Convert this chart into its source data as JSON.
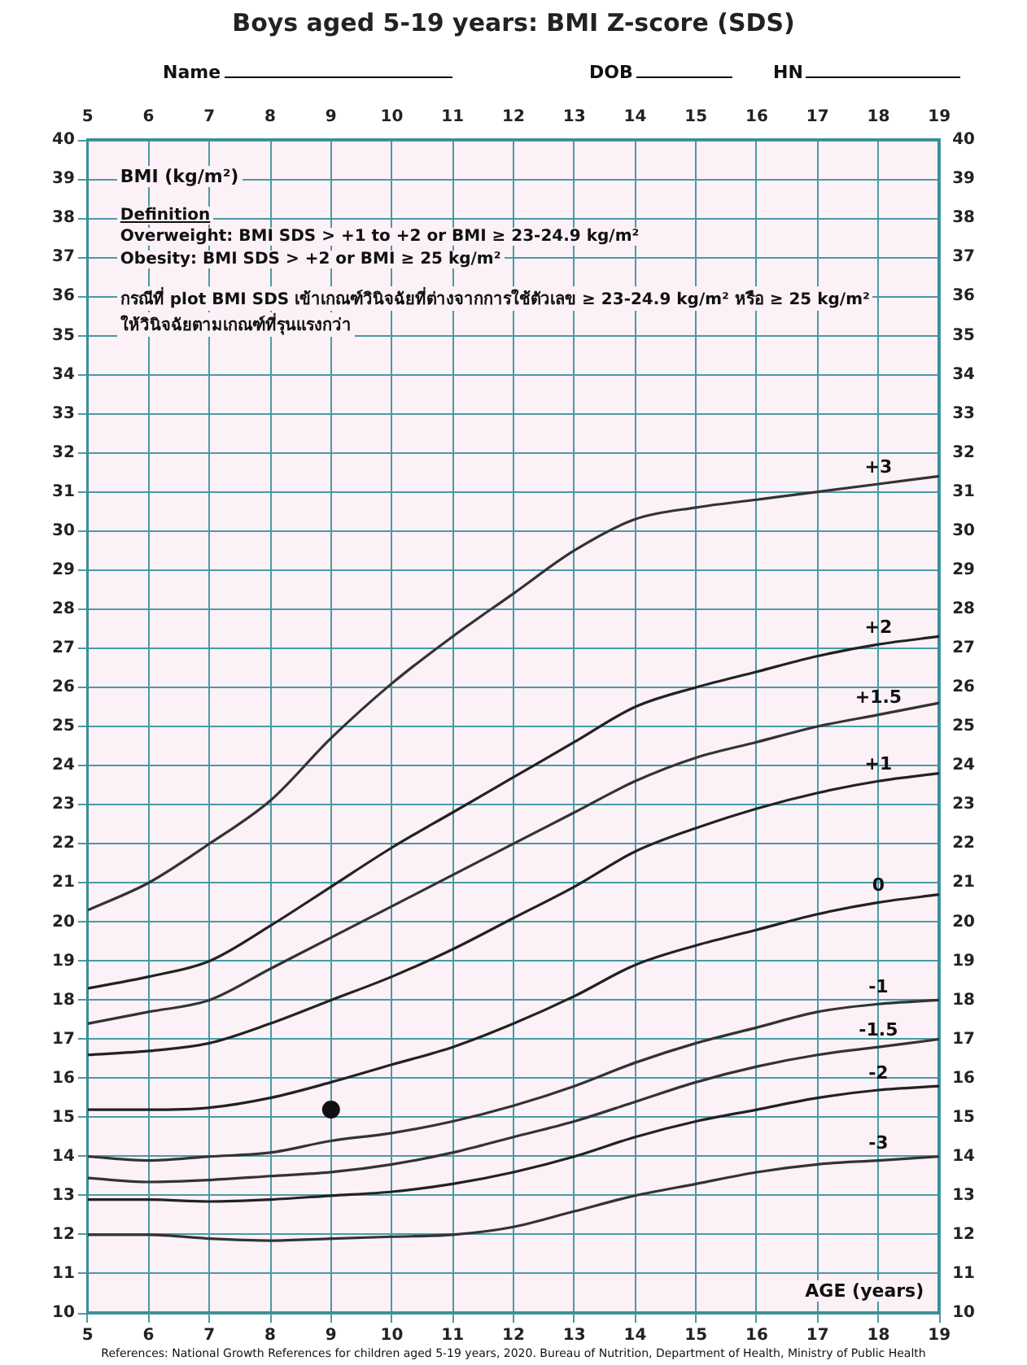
{
  "chart_data": {
    "type": "line",
    "title": "Boys aged 5-19 years: BMI Z-score (SDS)",
    "xlabel": "AGE (years)",
    "ylabel": "BMI (kg/m²)",
    "x": [
      5,
      6,
      7,
      8,
      9,
      10,
      11,
      12,
      13,
      14,
      15,
      16,
      17,
      18,
      19
    ],
    "xlim": [
      5,
      19
    ],
    "xticks": [
      5,
      6,
      7,
      8,
      9,
      10,
      11,
      12,
      13,
      14,
      15,
      16,
      17,
      18,
      19
    ],
    "x2lim": [
      5,
      19
    ],
    "x2ticks": [
      5,
      6,
      7,
      8,
      9,
      10,
      11,
      12,
      13,
      14,
      15,
      16,
      17,
      18,
      19
    ],
    "ylim": [
      10,
      40
    ],
    "yticks": [
      10,
      11,
      12,
      13,
      14,
      15,
      16,
      17,
      18,
      19,
      20,
      21,
      22,
      23,
      24,
      25,
      26,
      27,
      28,
      29,
      30,
      31,
      32,
      33,
      34,
      35,
      36,
      37,
      38,
      39,
      40
    ],
    "y2lim": [
      10,
      40
    ],
    "y2ticks": [
      10,
      11,
      12,
      13,
      14,
      15,
      16,
      17,
      18,
      19,
      20,
      21,
      22,
      23,
      24,
      25,
      26,
      27,
      28,
      29,
      30,
      31,
      32,
      33,
      34,
      35,
      36,
      37,
      38,
      39,
      40
    ],
    "grid": true,
    "legend": false,
    "marker": "none",
    "line_style": "solid",
    "series": [
      {
        "name": "+3",
        "color": "#333333",
        "values": [
          20.3,
          21.0,
          22.0,
          23.1,
          24.7,
          26.1,
          27.3,
          28.4,
          29.5,
          30.3,
          30.6,
          30.8,
          31.0,
          31.2,
          31.4
        ]
      },
      {
        "name": "+2",
        "color": "#222222",
        "values": [
          18.3,
          18.6,
          19.0,
          19.9,
          20.9,
          21.9,
          22.8,
          23.7,
          24.6,
          25.5,
          26.0,
          26.4,
          26.8,
          27.1,
          27.3
        ]
      },
      {
        "name": "+1.5",
        "color": "#333333",
        "values": [
          17.4,
          17.7,
          18.0,
          18.8,
          19.6,
          20.4,
          21.2,
          22.0,
          22.8,
          23.6,
          24.2,
          24.6,
          25.0,
          25.3,
          25.6
        ]
      },
      {
        "name": "+1",
        "color": "#222222",
        "values": [
          16.6,
          16.7,
          16.9,
          17.4,
          18.0,
          18.6,
          19.3,
          20.1,
          20.9,
          21.8,
          22.4,
          22.9,
          23.3,
          23.6,
          23.8
        ]
      },
      {
        "name": "0",
        "color": "#222222",
        "values": [
          15.2,
          15.2,
          15.25,
          15.5,
          15.9,
          16.35,
          16.8,
          17.4,
          18.1,
          18.9,
          19.4,
          19.8,
          20.2,
          20.5,
          20.7
        ]
      },
      {
        "name": "-1",
        "color": "#333333",
        "values": [
          14.0,
          13.9,
          14.0,
          14.1,
          14.4,
          14.6,
          14.9,
          15.3,
          15.8,
          16.4,
          16.9,
          17.3,
          17.7,
          17.9,
          18.0
        ]
      },
      {
        "name": "-1.5",
        "color": "#333333",
        "values": [
          13.45,
          13.35,
          13.4,
          13.5,
          13.6,
          13.8,
          14.1,
          14.5,
          14.9,
          15.4,
          15.9,
          16.3,
          16.6,
          16.8,
          17.0
        ]
      },
      {
        "name": "-2",
        "color": "#222222",
        "values": [
          12.9,
          12.9,
          12.85,
          12.9,
          13.0,
          13.1,
          13.3,
          13.6,
          14.0,
          14.5,
          14.9,
          15.2,
          15.5,
          15.7,
          15.8
        ]
      },
      {
        "name": "-3",
        "color": "#333333",
        "values": [
          12.0,
          12.0,
          11.9,
          11.85,
          11.9,
          11.95,
          12.0,
          12.2,
          12.6,
          13.0,
          13.3,
          13.6,
          13.8,
          13.9,
          14.0
        ]
      },
      {
        "type": "scatter",
        "marker": "circle",
        "color": "#111111",
        "x": [
          9
        ],
        "values": [
          15.2
        ]
      }
    ],
    "annotations": [
      "Name",
      "DOB",
      "HN",
      "Definition",
      "Overweight: BMI SDS > +1 to +2 or BMI ≥ 23-24.9 kg/m²",
      "Obesity: BMI SDS > +2 or BMI ≥ 25 kg/m²",
      "กรณีที่ plot BMI SDS เข้าเกณฑ์วินิจฉัยที่ต่างจากการใช้ตัวเลข ≥ 23-24.9 kg/m² หรือ ≥ 25 kg/m²",
      "ให้วินิจฉัยตามเกณฑ์ที่รุนแรงกว่า",
      "References: National Growth References for children aged 5-19 years, 2020. Bureau of Nutrition, Department of Health, Ministry of Public Health"
    ]
  }
}
